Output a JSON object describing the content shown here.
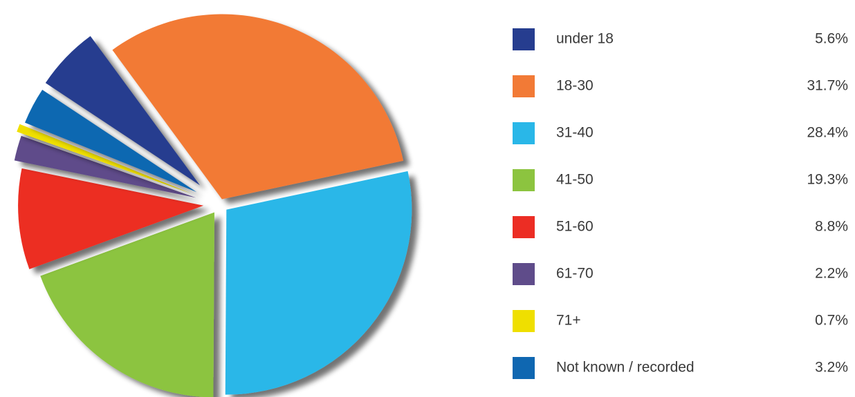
{
  "chart_data": {
    "type": "pie",
    "categories": [
      "under 18",
      "18-30",
      "31-40",
      "41-50",
      "51-60",
      "61-70",
      "71+",
      "Not known / recorded"
    ],
    "values": [
      5.6,
      31.7,
      28.4,
      19.3,
      8.8,
      2.2,
      0.7,
      3.2
    ],
    "value_labels": [
      "5.6%",
      "31.7%",
      "28.4%",
      "19.3%",
      "8.8%",
      "2.2%",
      "0.7%",
      "3.2%"
    ],
    "colors": [
      "#263d8f",
      "#f27a36",
      "#29b7e8",
      "#8cc43f",
      "#ec2d24",
      "#5f4c8a",
      "#efdf00",
      "#0f67b1"
    ],
    "legend": "right"
  }
}
